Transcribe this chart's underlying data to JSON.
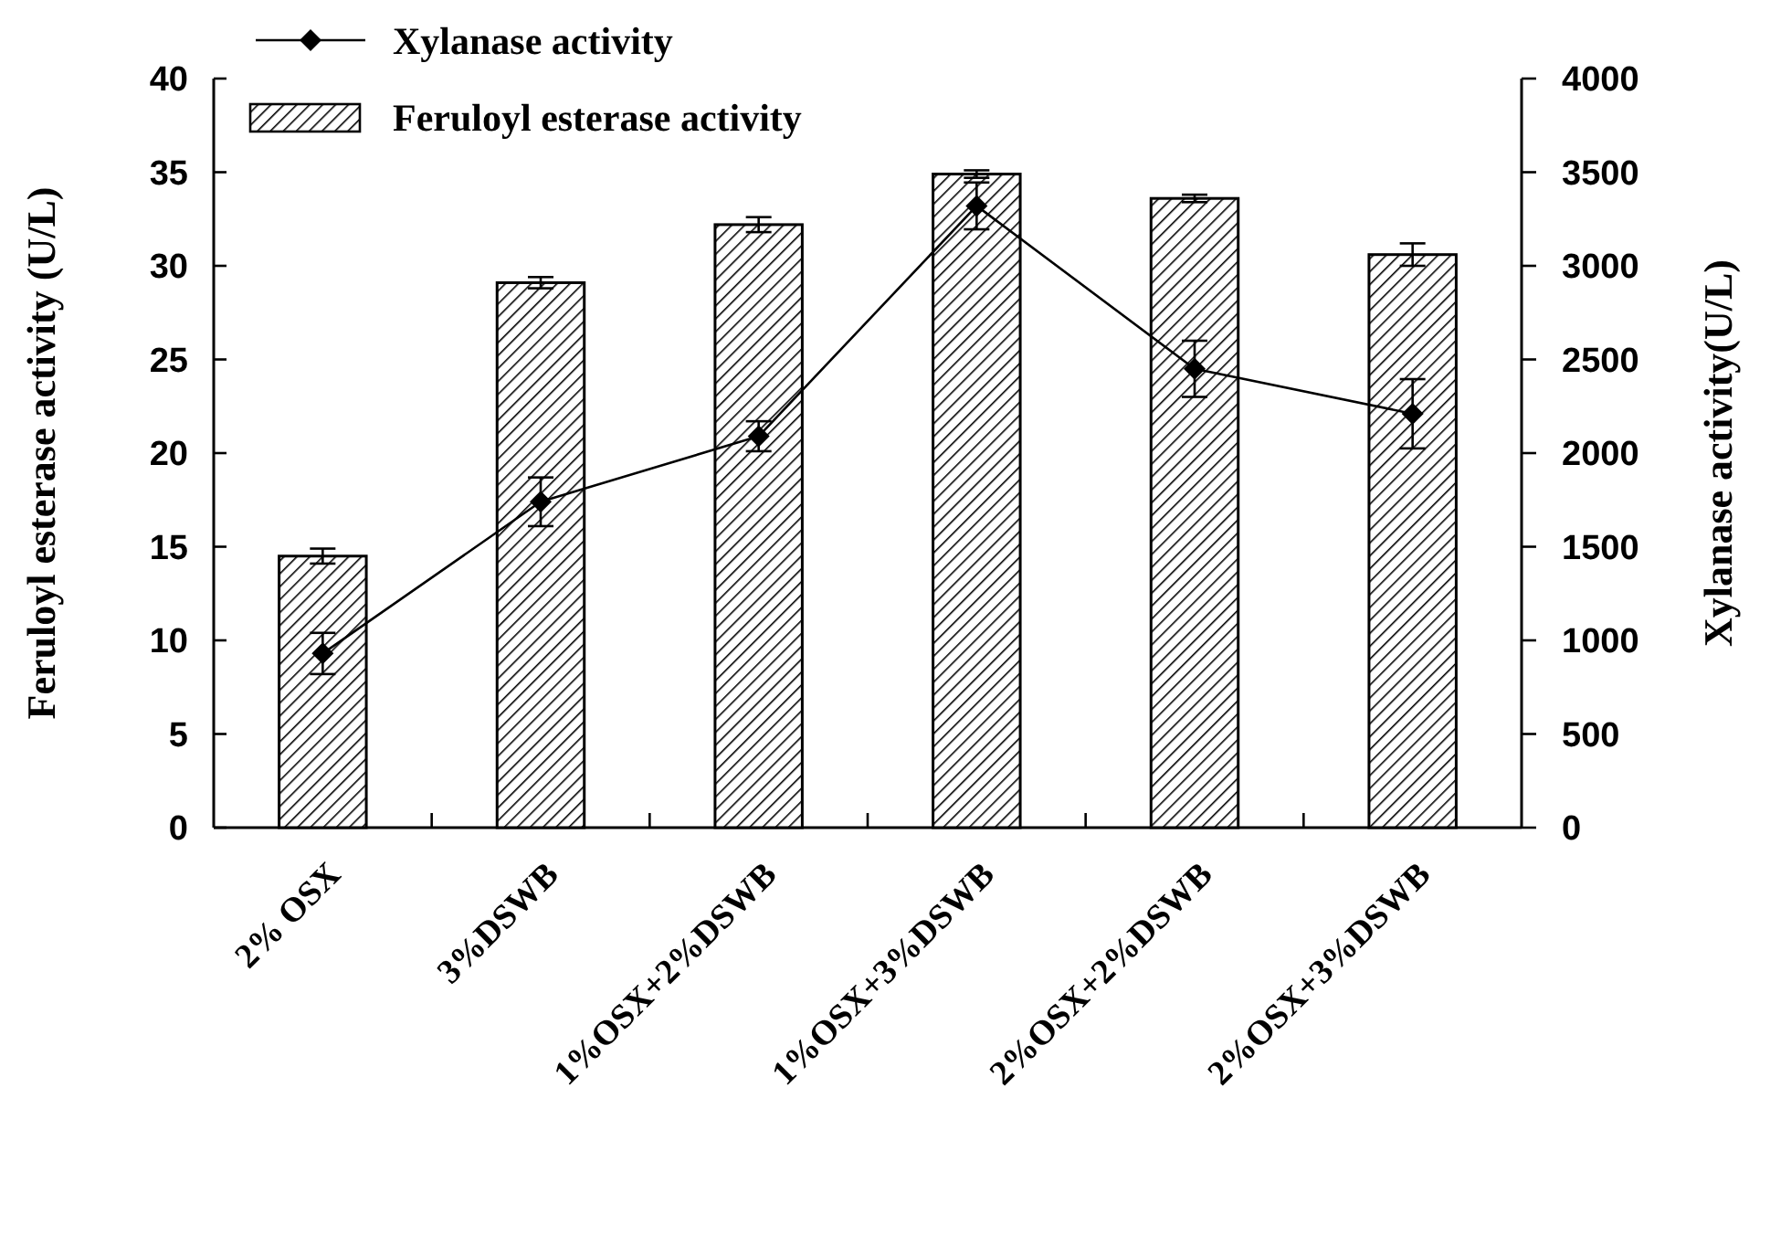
{
  "chart_data": {
    "type": "bar",
    "ylabel": "Feruloyl esterase activity (U/L)",
    "y2label": "Xylanase activity(U/L)",
    "categories": [
      "2% OSX",
      "3%DSWB",
      "1%OSX+2%DSWB",
      "1%OSX+3%DSWB",
      "2%OSX+2%DSWB",
      "2%OSX+3%DSWB"
    ],
    "series": [
      {
        "name": "Xylanase activity",
        "type": "line",
        "axis": "y2",
        "color": "#000000",
        "marker": "diamond",
        "line_style": "solid",
        "values": [
          930,
          1740,
          2090,
          3320,
          2450,
          2210
        ],
        "errors": [
          110,
          130,
          80,
          125,
          150,
          185
        ]
      },
      {
        "name": "Feruloyl esterase activity",
        "color": "#000000",
        "values": [
          14.5,
          29.1,
          32.2,
          34.9,
          33.6,
          30.6
        ],
        "errors": [
          0.4,
          0.3,
          0.4,
          0.2,
          0.2,
          0.6
        ]
      }
    ],
    "ylim": [
      0,
      40
    ],
    "yticks": [
      0,
      5,
      10,
      15,
      20,
      25,
      30,
      35,
      40
    ],
    "y2lim": [
      0,
      4000
    ],
    "y2ticks": [
      0,
      500,
      1000,
      1500,
      2000,
      2500,
      3000,
      3500,
      4000
    ],
    "legend": "top left"
  }
}
